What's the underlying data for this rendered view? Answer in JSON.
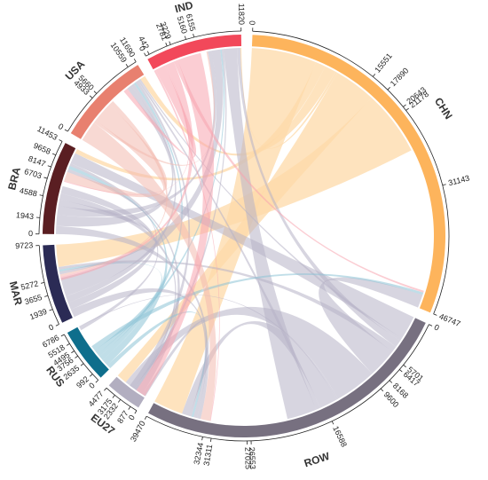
{
  "chart_data": {
    "type": "chord",
    "regions": [
      {
        "name": "CHN",
        "total": 46747,
        "color": "#FDB45C",
        "ticks": [
          0,
          15551,
          17890,
          20643,
          21178,
          31143,
          46747
        ]
      },
      {
        "name": "ROW",
        "total": 39470,
        "color": "#777080",
        "ticks": [
          0,
          5701,
          6417,
          8168,
          9600,
          16588,
          26553,
          27025,
          31311,
          32344,
          39470
        ]
      },
      {
        "name": "EU27",
        "total": 4477,
        "color": "#B2AEC0",
        "ticks": [
          0,
          877,
          2332,
          3175,
          4477
        ]
      },
      {
        "name": "RUS",
        "total": 6786,
        "color": "#0E6E8C",
        "ticks": [
          0,
          992,
          2635,
          3756,
          4495,
          5518,
          6786
        ]
      },
      {
        "name": "MAR",
        "total": 9723,
        "color": "#2B2B55",
        "ticks": [
          0,
          1939,
          3655,
          5272,
          9723
        ]
      },
      {
        "name": "BRA",
        "total": 11453,
        "color": "#5A1E22",
        "ticks": [
          0,
          1943,
          4588,
          6703,
          8147,
          9658,
          11453
        ]
      },
      {
        "name": "USA",
        "total": 11690,
        "color": "#E8806F",
        "ticks": [
          0,
          4933,
          5660,
          10559,
          11690
        ]
      },
      {
        "name": "IND",
        "total": 11820,
        "color": "#F2485A",
        "ticks": [
          0,
          442,
          2781,
          3229,
          5160,
          6155,
          11820
        ]
      }
    ],
    "flows": [
      {
        "from": "CHN",
        "to": "ROW",
        "value": 15551
      },
      {
        "from": "CHN",
        "to": "BRA",
        "value": 2339
      },
      {
        "from": "CHN",
        "to": "USA",
        "value": 2753
      },
      {
        "from": "CHN",
        "to": "IND",
        "value": 535
      },
      {
        "from": "CHN",
        "to": "EU27",
        "value": 9965
      },
      {
        "from": "CHN",
        "to": "MAR",
        "value": 15604
      },
      {
        "from": "ROW",
        "to": "BRA",
        "value": 5701
      },
      {
        "from": "ROW",
        "to": "USA",
        "value": 716
      },
      {
        "from": "ROW",
        "to": "IND",
        "value": 1751
      },
      {
        "from": "ROW",
        "to": "MAR",
        "value": 1432
      },
      {
        "from": "ROW",
        "to": "CHN",
        "value": 6988
      },
      {
        "from": "ROW",
        "to": "EU27",
        "value": 9965
      },
      {
        "from": "ROW",
        "to": "RUS",
        "value": 472
      },
      {
        "from": "ROW",
        "to": "ROW",
        "value": 4286
      },
      {
        "from": "ROW",
        "to": "USA",
        "value": 1033
      },
      {
        "from": "ROW",
        "to": "IND",
        "value": 7126
      },
      {
        "from": "EU27",
        "to": "ROW",
        "value": 877
      },
      {
        "from": "EU27",
        "to": "BRA",
        "value": 1455
      },
      {
        "from": "EU27",
        "to": "IND",
        "value": 843
      },
      {
        "from": "EU27",
        "to": "USA",
        "value": 1302
      },
      {
        "from": "RUS",
        "to": "ROW",
        "value": 992
      },
      {
        "from": "RUS",
        "to": "BRA",
        "value": 1643
      },
      {
        "from": "RUS",
        "to": "USA",
        "value": 1121
      },
      {
        "from": "RUS",
        "to": "IND",
        "value": 739
      },
      {
        "from": "RUS",
        "to": "MAR",
        "value": 1023
      },
      {
        "from": "RUS",
        "to": "CHN",
        "value": 1268
      },
      {
        "from": "MAR",
        "to": "ROW",
        "value": 1939
      },
      {
        "from": "MAR",
        "to": "BRA",
        "value": 1716
      },
      {
        "from": "MAR",
        "to": "USA",
        "value": 1617
      },
      {
        "from": "MAR",
        "to": "IND",
        "value": 4451
      },
      {
        "from": "BRA",
        "to": "ROW",
        "value": 1943
      },
      {
        "from": "BRA",
        "to": "USA",
        "value": 2645
      },
      {
        "from": "BRA",
        "to": "IND",
        "value": 2115
      },
      {
        "from": "BRA",
        "to": "MAR",
        "value": 1444
      },
      {
        "from": "BRA",
        "to": "EU27",
        "value": 1511
      },
      {
        "from": "BRA",
        "to": "RUS",
        "value": 1795
      },
      {
        "from": "USA",
        "to": "ROW",
        "value": 4933
      },
      {
        "from": "USA",
        "to": "IND",
        "value": 727
      },
      {
        "from": "USA",
        "to": "BRA",
        "value": 4899
      },
      {
        "from": "USA",
        "to": "MAR",
        "value": 1131
      },
      {
        "from": "IND",
        "to": "ROW",
        "value": 442
      },
      {
        "from": "IND",
        "to": "USA",
        "value": 2339
      },
      {
        "from": "IND",
        "to": "BRA",
        "value": 448
      },
      {
        "from": "IND",
        "to": "MAR",
        "value": 1931
      },
      {
        "from": "IND",
        "to": "CHN",
        "value": 995
      },
      {
        "from": "IND",
        "to": "EU27",
        "value": 5665
      }
    ]
  }
}
